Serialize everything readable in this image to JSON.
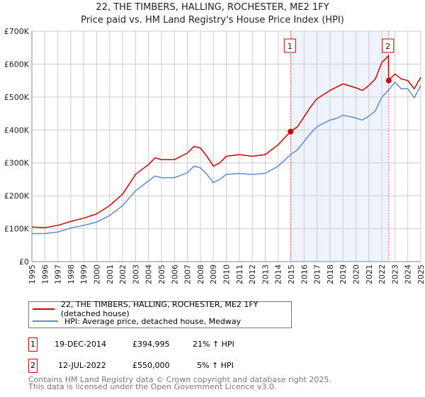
{
  "title": "22, THE TIMBERS, HALLING, ROCHESTER, ME2 1FY",
  "subtitle": "Price paid vs. HM Land Registry's House Price Index (HPI)",
  "chart_data": {
    "type": "line",
    "title": "22, THE TIMBERS, HALLING, ROCHESTER, ME2 1FY",
    "xlabel": "",
    "ylabel": "",
    "xlim": [
      1995,
      2025
    ],
    "ylim": [
      0,
      700000
    ],
    "grid": true,
    "legend_placement": "below",
    "y_ticks": [
      0,
      100000,
      200000,
      300000,
      400000,
      500000,
      600000,
      700000
    ],
    "y_tick_labels": [
      "£0",
      "£100K",
      "£200K",
      "£300K",
      "£400K",
      "£500K",
      "£600K",
      "£700K"
    ],
    "x_ticks": [
      "1995",
      "1996",
      "1997",
      "1998",
      "1999",
      "2000",
      "2001",
      "2002",
      "2003",
      "2004",
      "2005",
      "2006",
      "2007",
      "2008",
      "2009",
      "2010",
      "2011",
      "2012",
      "2013",
      "2014",
      "2015",
      "2016",
      "2017",
      "2018",
      "2019",
      "2020",
      "2021",
      "2022",
      "2023",
      "2024",
      "2025"
    ],
    "series": [
      {
        "name": "22, THE TIMBERS, HALLING, ROCHESTER, ME2 1FY (detached house)",
        "color": "#cc0000",
        "x": [
          1995,
          1996,
          1997,
          1998,
          1999,
          2000,
          2001,
          2002,
          2003,
          2004,
          2004.5,
          2005,
          2006,
          2007,
          2007.5,
          2008,
          2008.5,
          2009,
          2009.5,
          2010,
          2011,
          2012,
          2013,
          2014,
          2014.96,
          2015.5,
          2016,
          2016.5,
          2017,
          2018,
          2018.5,
          2019,
          2020,
          2020.5,
          2021,
          2021.5,
          2022,
          2022.5,
          2022.53,
          2023,
          2023.5,
          2024,
          2024.5,
          2025
        ],
        "y": [
          105000,
          103000,
          110000,
          122000,
          132000,
          145000,
          170000,
          205000,
          265000,
          295000,
          315000,
          310000,
          310000,
          330000,
          350000,
          345000,
          320000,
          290000,
          300000,
          320000,
          325000,
          320000,
          325000,
          355000,
          394995,
          410000,
          440000,
          470000,
          495000,
          520000,
          530000,
          540000,
          528000,
          520000,
          535000,
          555000,
          605000,
          625000,
          550000,
          570000,
          555000,
          550000,
          525000,
          560000
        ]
      },
      {
        "name": "HPI: Average price, detached house, Medway",
        "color": "#5b8dd0",
        "x": [
          1995,
          1996,
          1997,
          1998,
          1999,
          2000,
          2001,
          2002,
          2003,
          2004,
          2004.5,
          2005,
          2006,
          2007,
          2007.5,
          2008,
          2008.5,
          2009,
          2009.5,
          2010,
          2011,
          2012,
          2013,
          2014,
          2014.96,
          2015.5,
          2016,
          2016.5,
          2017,
          2018,
          2018.5,
          2019,
          2020,
          2020.5,
          2021,
          2021.5,
          2022,
          2022.5,
          2023,
          2023.5,
          2024,
          2024.5,
          2025
        ],
        "y": [
          85000,
          85000,
          90000,
          102000,
          110000,
          120000,
          140000,
          170000,
          215000,
          245000,
          260000,
          255000,
          255000,
          270000,
          290000,
          285000,
          265000,
          240000,
          250000,
          265000,
          268000,
          265000,
          268000,
          290000,
          325000,
          340000,
          365000,
          390000,
          410000,
          430000,
          435000,
          445000,
          436000,
          430000,
          442000,
          458000,
          500000,
          520000,
          545000,
          525000,
          525000,
          498000,
          535000
        ]
      }
    ],
    "annotations": [
      {
        "label": "1",
        "x": 2014.96,
        "y": 394995
      },
      {
        "label": "2",
        "x": 2022.53,
        "y": 550000
      }
    ],
    "shaded_range": [
      2014.96,
      2022.53
    ]
  },
  "legend": {
    "property_label": "22, THE TIMBERS, HALLING, ROCHESTER, ME2 1FY (detached house)",
    "hpi_label": "HPI: Average price, detached house, Medway"
  },
  "transactions": [
    {
      "num": "1",
      "date": "19-DEC-2014",
      "price": "£394,995",
      "hpi": "21% ↑ HPI"
    },
    {
      "num": "2",
      "date": "12-JUL-2022",
      "price": "£550,000",
      "hpi": "5% ↑ HPI"
    }
  ],
  "footer": {
    "line1": "Contains HM Land Registry data © Crown copyright and database right 2025.",
    "line2": "This data is licensed under the Open Government Licence v3.0."
  }
}
